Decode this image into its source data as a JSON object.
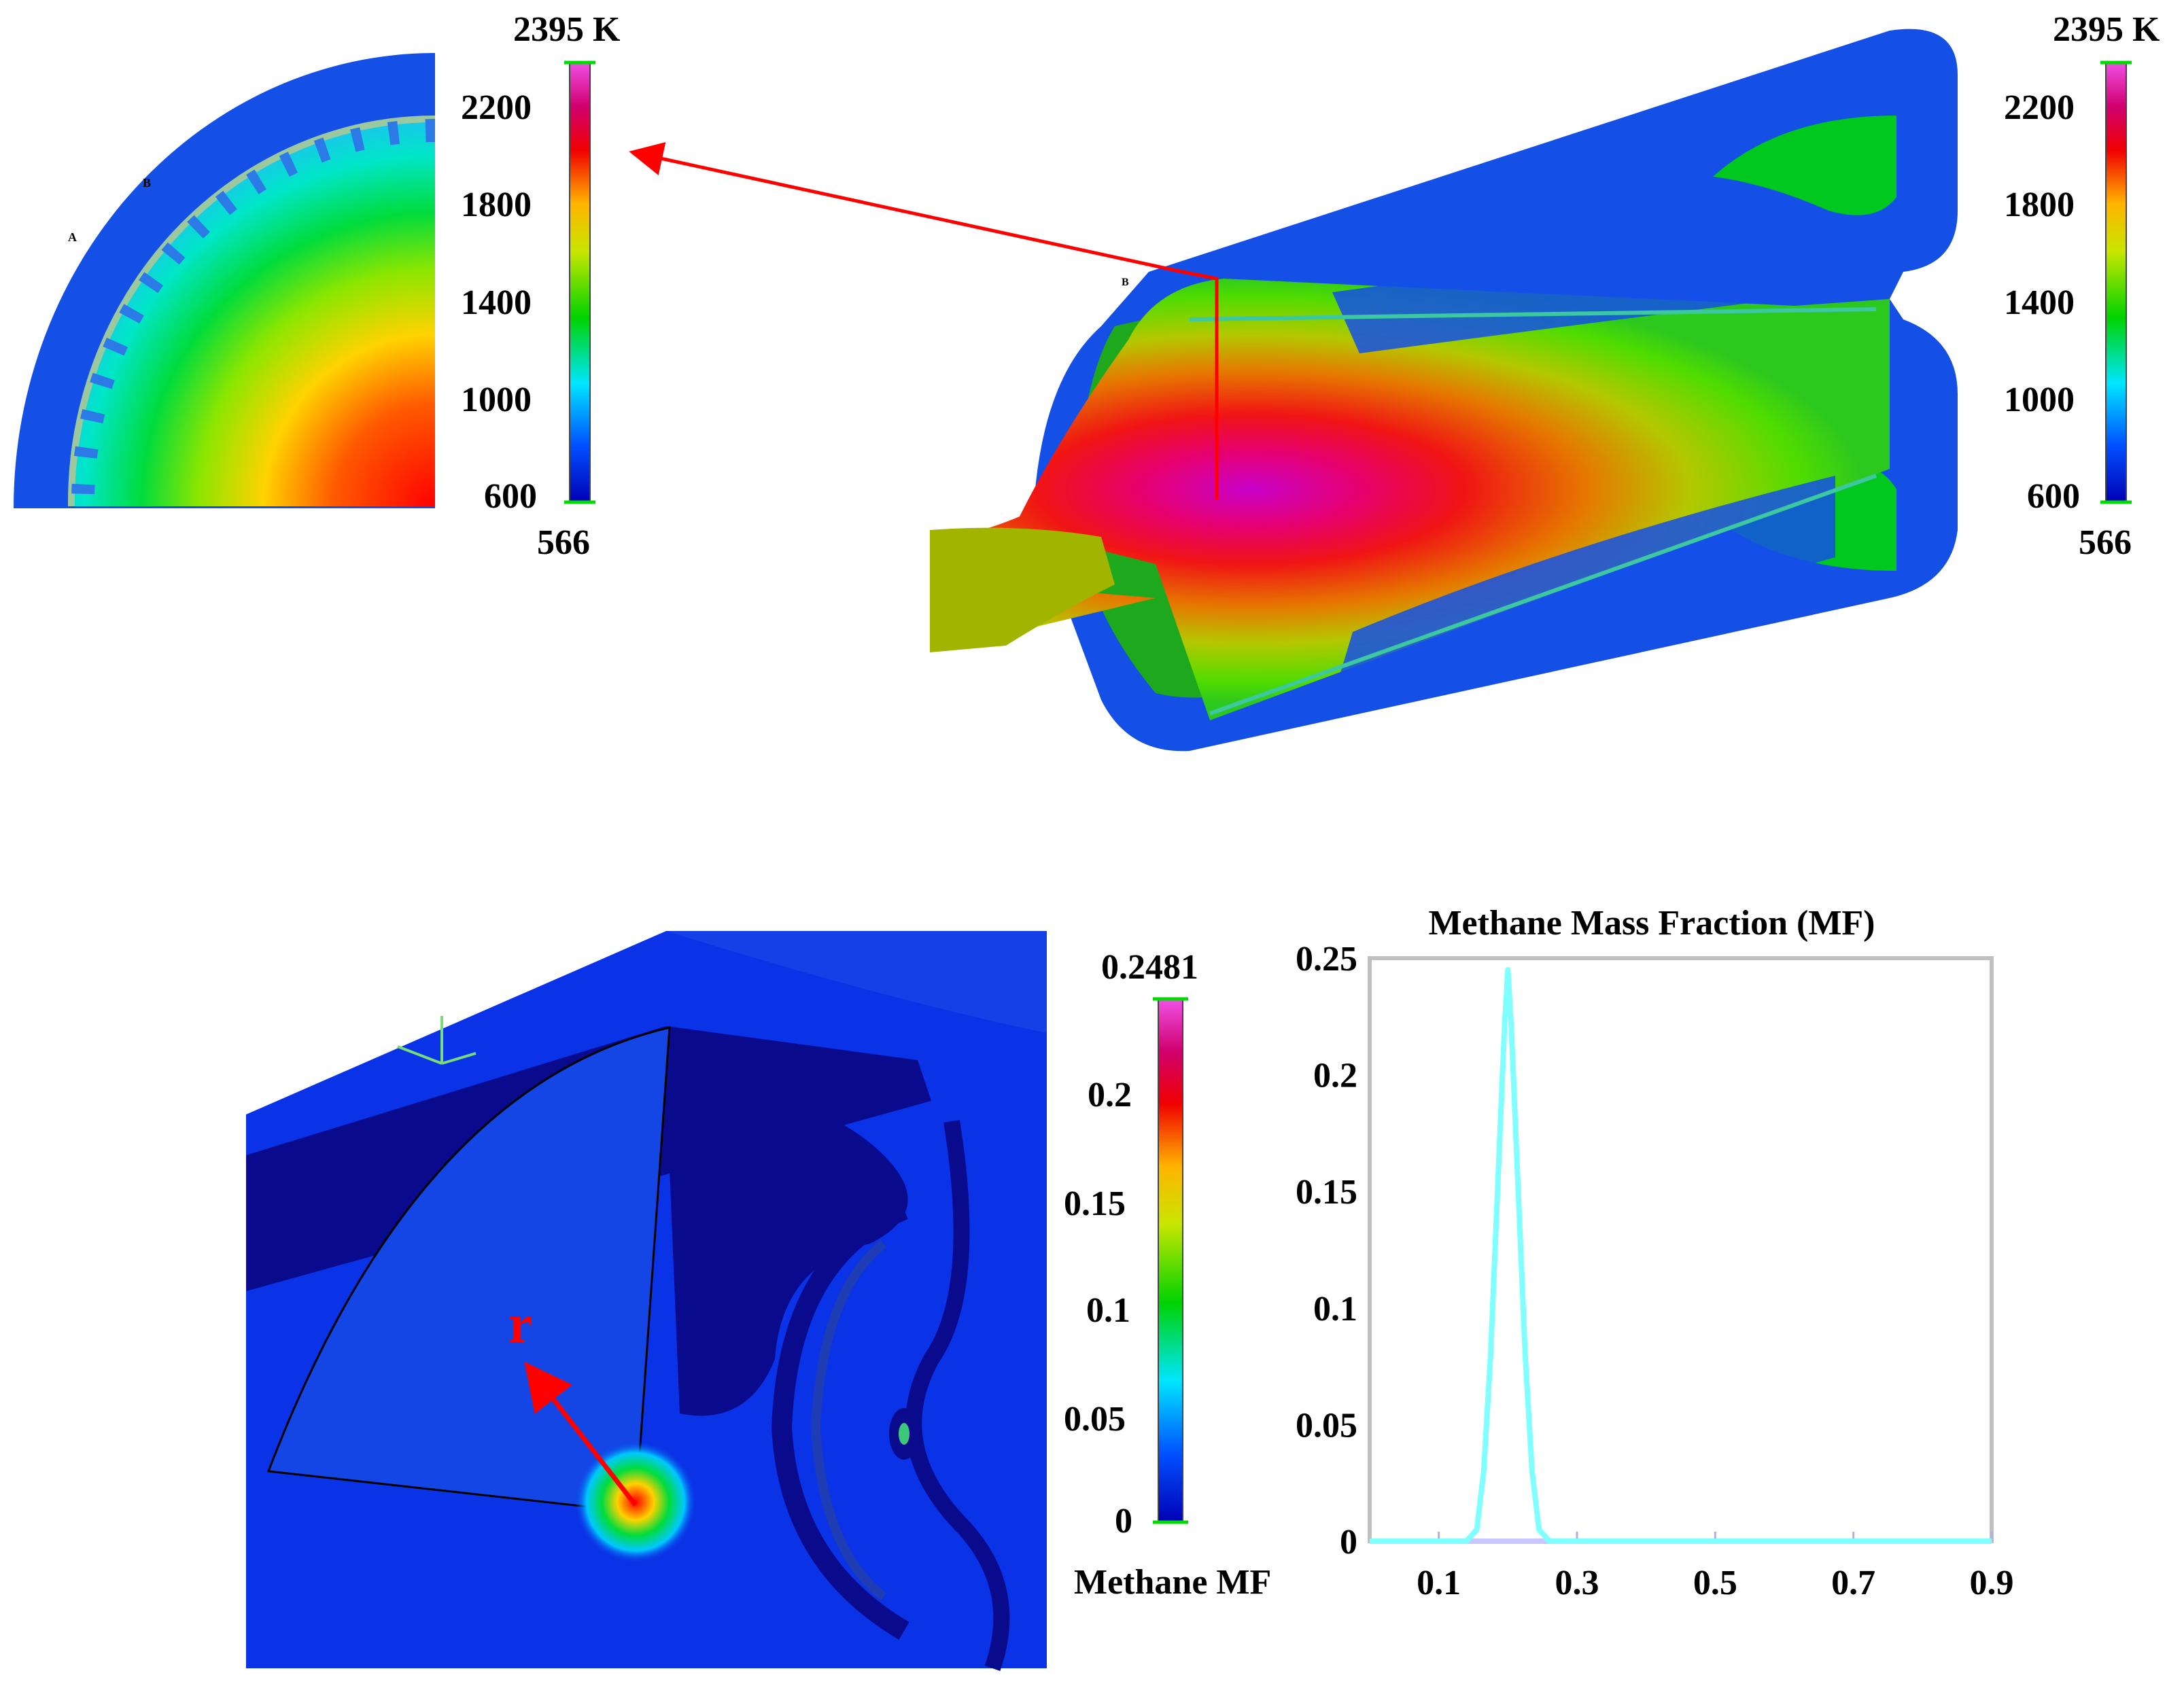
{
  "temperature_colorbar": {
    "max_label": "2395 K",
    "min_label": "566",
    "ticks": [
      "2200",
      "1800",
      "1400",
      "1000",
      "600"
    ]
  },
  "methane_colorbar": {
    "max_label": "0.2481",
    "ticks": [
      "0.2",
      "0.15",
      "0.1",
      "0.05",
      "0"
    ],
    "caption": "Methane MF"
  },
  "radial_label": "r",
  "colors": {
    "chart_line": "#7fffff",
    "chart_frame": "#c0c0c0",
    "chart_bottom": "#c8c8ff",
    "arrow": "#ff0000",
    "model_blue": "#1450e6",
    "dark_blue": "#0a0a8c"
  },
  "chart_data": {
    "type": "line",
    "title": "Methane Mass Fraction (MF)",
    "xlabel": "",
    "ylabel": "",
    "xlim": [
      0,
      0.9
    ],
    "ylim": [
      0,
      0.25
    ],
    "xticks": [
      "0.1",
      "0.3",
      "0.5",
      "0.7",
      "0.9"
    ],
    "yticks": [
      "0.25",
      "0.2",
      "0.15",
      "0.1",
      "0.05",
      "0"
    ],
    "grid": false,
    "series": [
      {
        "x": [
          0,
          0.14,
          0.155,
          0.165,
          0.175,
          0.185,
          0.195,
          0.2,
          0.205,
          0.215,
          0.225,
          0.235,
          0.245,
          0.26,
          0.9
        ],
        "y": [
          0,
          0,
          0.005,
          0.03,
          0.08,
          0.15,
          0.22,
          0.245,
          0.22,
          0.15,
          0.08,
          0.03,
          0.005,
          0,
          0
        ]
      }
    ]
  }
}
